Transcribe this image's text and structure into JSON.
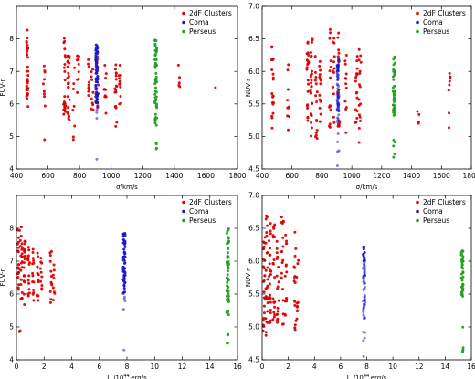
{
  "chart_data": [
    {
      "type": "scatter",
      "xlabel": "σ/km/s",
      "ylabel": "FUV-r",
      "xlim": [
        400,
        1800
      ],
      "ylim": [
        4,
        9
      ],
      "xticks": [
        "400",
        "600",
        "800",
        "1000",
        "1200",
        "1400",
        "1600",
        "1800"
      ],
      "yticks": [
        "4",
        "5",
        "6",
        "7",
        "8"
      ],
      "legend": {
        "placement": "top-right",
        "entries": [
          "2dF Clusters",
          "Coma",
          "Perseus"
        ]
      },
      "series": [
        {
          "name": "2dF Clusters",
          "color": "#e00000",
          "columns": [
            {
              "x": 470,
              "ymin": 5.9,
              "ymax": 8.3,
              "n": 34
            },
            {
              "x": 575,
              "ymin": 5.9,
              "ymax": 7.2,
              "n": 9
            },
            {
              "x": 583,
              "ymin": 4.9,
              "ymax": 4.9,
              "n": 1
            },
            {
              "x": 705,
              "ymin": 5.6,
              "ymax": 8.1,
              "n": 24
            },
            {
              "x": 730,
              "ymin": 5.5,
              "ymax": 7.6,
              "n": 24
            },
            {
              "x": 762,
              "ymin": 4.9,
              "ymax": 7.2,
              "n": 8
            },
            {
              "x": 790,
              "ymin": 5.9,
              "ymax": 7.5,
              "n": 10
            },
            {
              "x": 855,
              "ymin": 6.2,
              "ymax": 7.4,
              "n": 10
            },
            {
              "x": 880,
              "ymin": 5.8,
              "ymax": 7.3,
              "n": 10
            },
            {
              "x": 912,
              "ymin": 5.7,
              "ymax": 7.6,
              "n": 14
            },
            {
              "x": 962,
              "ymin": 5.6,
              "ymax": 7.3,
              "n": 10
            },
            {
              "x": 1030,
              "ymin": 5.3,
              "ymax": 7.3,
              "n": 17
            },
            {
              "x": 1055,
              "ymin": 5.8,
              "ymax": 7.2,
              "n": 12
            },
            {
              "x": 1430,
              "ymin": 6.2,
              "ymax": 7.3,
              "n": 5
            },
            {
              "x": 1660,
              "ymin": 6.5,
              "ymax": 6.5,
              "n": 1
            }
          ]
        },
        {
          "name": "Coma",
          "color": "#1a1acc",
          "columns": [
            {
              "x": 908,
              "ymin": 6.0,
              "ymax": 7.85,
              "n": 60
            },
            {
              "x": 908,
              "ymin": 5.3,
              "ymax": 6.0,
              "n": 4
            },
            {
              "x": 908,
              "ymin": 4.3,
              "ymax": 4.3,
              "n": 1
            }
          ]
        },
        {
          "name": "Perseus",
          "color": "#22a022",
          "columns": [
            {
              "x": 1283,
              "ymin": 5.3,
              "ymax": 8.0,
              "n": 55
            },
            {
              "x": 1283,
              "ymin": 4.3,
              "ymax": 4.85,
              "n": 4
            }
          ]
        }
      ]
    },
    {
      "type": "scatter",
      "xlabel": "σ/km/s",
      "ylabel": "NUV-r",
      "xlim": [
        400,
        1800
      ],
      "ylim": [
        4.5,
        7.0
      ],
      "xticks": [
        "400",
        "600",
        "800",
        "1000",
        "1200",
        "1400",
        "1600",
        "1800"
      ],
      "yticks": [
        "4.5",
        "5.0",
        "5.5",
        "6.0",
        "6.5",
        "7.0"
      ],
      "legend": {
        "placement": "top-right",
        "entries": [
          "2dF Clusters",
          "Coma",
          "Perseus"
        ]
      },
      "series": [
        {
          "name": "2dF Clusters",
          "color": "#e00000",
          "columns": [
            {
              "x": 470,
              "ymin": 5.1,
              "ymax": 6.45,
              "n": 22
            },
            {
              "x": 575,
              "ymin": 5.0,
              "ymax": 6.2,
              "n": 10
            },
            {
              "x": 705,
              "ymin": 5.2,
              "ymax": 6.5,
              "n": 22
            },
            {
              "x": 730,
              "ymin": 5.0,
              "ymax": 6.6,
              "n": 25
            },
            {
              "x": 762,
              "ymin": 4.9,
              "ymax": 6.7,
              "n": 15
            },
            {
              "x": 790,
              "ymin": 5.0,
              "ymax": 6.3,
              "n": 14
            },
            {
              "x": 855,
              "ymin": 5.0,
              "ymax": 6.7,
              "n": 14
            },
            {
              "x": 880,
              "ymin": 5.1,
              "ymax": 6.6,
              "n": 12
            },
            {
              "x": 912,
              "ymin": 4.95,
              "ymax": 6.6,
              "n": 16
            },
            {
              "x": 962,
              "ymin": 5.0,
              "ymax": 6.3,
              "n": 12
            },
            {
              "x": 1030,
              "ymin": 5.0,
              "ymax": 6.25,
              "n": 16
            },
            {
              "x": 1055,
              "ymin": 4.9,
              "ymax": 6.7,
              "n": 16
            },
            {
              "x": 1445,
              "ymin": 5.1,
              "ymax": 5.5,
              "n": 4
            },
            {
              "x": 1655,
              "ymin": 4.9,
              "ymax": 6.0,
              "n": 8
            }
          ]
        },
        {
          "name": "Coma",
          "color": "#1a1acc",
          "columns": [
            {
              "x": 908,
              "ymin": 5.1,
              "ymax": 6.2,
              "n": 60
            },
            {
              "x": 908,
              "ymin": 4.75,
              "ymax": 5.05,
              "n": 4
            },
            {
              "x": 908,
              "ymin": 4.55,
              "ymax": 4.55,
              "n": 1
            }
          ]
        },
        {
          "name": "Perseus",
          "color": "#22a022",
          "columns": [
            {
              "x": 1283,
              "ymin": 5.3,
              "ymax": 6.3,
              "n": 40
            },
            {
              "x": 1283,
              "ymin": 4.6,
              "ymax": 5.0,
              "n": 5
            }
          ]
        }
      ]
    },
    {
      "type": "scatter",
      "xlabel": "L_x/10^44 erg/s",
      "ylabel": "FUV-r",
      "xlim": [
        0,
        16
      ],
      "ylim": [
        4,
        9
      ],
      "xticks": [
        "0",
        "2",
        "4",
        "6",
        "8",
        "10",
        "12",
        "14",
        "16"
      ],
      "yticks": [
        "4",
        "5",
        "6",
        "7",
        "8"
      ],
      "legend": {
        "placement": "top-right",
        "entries": [
          "2dF Clusters",
          "Coma",
          "Perseus"
        ]
      },
      "series": [
        {
          "name": "2dF Clusters",
          "color": "#e00000",
          "columns": [
            {
              "x": 0.15,
              "ymin": 5.8,
              "ymax": 8.3,
              "n": 20
            },
            {
              "x": 0.35,
              "ymin": 5.8,
              "ymax": 8.1,
              "n": 22
            },
            {
              "x": 0.6,
              "ymin": 5.6,
              "ymax": 7.8,
              "n": 20
            },
            {
              "x": 0.25,
              "ymin": 4.85,
              "ymax": 4.9,
              "n": 2
            },
            {
              "x": 0.9,
              "ymin": 5.9,
              "ymax": 7.7,
              "n": 16
            },
            {
              "x": 1.2,
              "ymin": 5.8,
              "ymax": 7.5,
              "n": 14
            },
            {
              "x": 1.55,
              "ymin": 5.8,
              "ymax": 7.3,
              "n": 12
            },
            {
              "x": 1.8,
              "ymin": 6.0,
              "ymax": 7.2,
              "n": 10
            },
            {
              "x": 2.5,
              "ymin": 5.6,
              "ymax": 7.3,
              "n": 12
            },
            {
              "x": 2.7,
              "ymin": 5.8,
              "ymax": 7.0,
              "n": 8
            }
          ]
        },
        {
          "name": "Coma",
          "color": "#1a1acc",
          "columns": [
            {
              "x": 7.8,
              "ymin": 6.0,
              "ymax": 7.85,
              "n": 60
            },
            {
              "x": 7.8,
              "ymin": 5.3,
              "ymax": 6.0,
              "n": 4
            },
            {
              "x": 7.8,
              "ymin": 4.3,
              "ymax": 4.3,
              "n": 1
            }
          ]
        },
        {
          "name": "Perseus",
          "color": "#22a022",
          "columns": [
            {
              "x": 15.3,
              "ymin": 5.3,
              "ymax": 8.0,
              "n": 55
            },
            {
              "x": 15.3,
              "ymin": 4.3,
              "ymax": 4.85,
              "n": 4
            }
          ]
        }
      ]
    },
    {
      "type": "scatter",
      "xlabel": "L_x/10^44 erg/s",
      "ylabel": "NUV-r",
      "xlim": [
        0,
        16
      ],
      "ylim": [
        4.5,
        7.0
      ],
      "xticks": [
        "0",
        "2",
        "4",
        "6",
        "8",
        "10",
        "12",
        "14",
        "16"
      ],
      "yticks": [
        "4.5",
        "5.0",
        "5.5",
        "6.0",
        "6.5",
        "7.0"
      ],
      "legend": {
        "placement": "top-right",
        "entries": [
          "2dF Clusters",
          "Coma",
          "Perseus"
        ]
      },
      "series": [
        {
          "name": "2dF Clusters",
          "color": "#e00000",
          "columns": [
            {
              "x": 0.15,
              "ymin": 4.9,
              "ymax": 6.5,
              "n": 24
            },
            {
              "x": 0.35,
              "ymin": 4.8,
              "ymax": 6.7,
              "n": 26
            },
            {
              "x": 0.6,
              "ymin": 4.95,
              "ymax": 6.6,
              "n": 22
            },
            {
              "x": 0.9,
              "ymin": 5.0,
              "ymax": 6.6,
              "n": 20
            },
            {
              "x": 1.2,
              "ymin": 5.0,
              "ymax": 6.5,
              "n": 18
            },
            {
              "x": 1.55,
              "ymin": 5.0,
              "ymax": 6.75,
              "n": 18
            },
            {
              "x": 1.8,
              "ymin": 5.1,
              "ymax": 6.4,
              "n": 14
            },
            {
              "x": 2.5,
              "ymin": 4.95,
              "ymax": 6.5,
              "n": 16
            },
            {
              "x": 2.7,
              "ymin": 5.1,
              "ymax": 6.3,
              "n": 10
            }
          ]
        },
        {
          "name": "Coma",
          "color": "#1a1acc",
          "columns": [
            {
              "x": 7.8,
              "ymin": 5.1,
              "ymax": 6.25,
              "n": 60
            },
            {
              "x": 7.8,
              "ymin": 4.75,
              "ymax": 5.05,
              "n": 4
            },
            {
              "x": 7.8,
              "ymin": 4.55,
              "ymax": 4.55,
              "n": 1
            }
          ]
        },
        {
          "name": "Perseus",
          "color": "#22a022",
          "columns": [
            {
              "x": 15.3,
              "ymin": 5.4,
              "ymax": 6.2,
              "n": 40
            },
            {
              "x": 15.3,
              "ymin": 4.6,
              "ymax": 5.0,
              "n": 5
            }
          ]
        }
      ]
    }
  ]
}
